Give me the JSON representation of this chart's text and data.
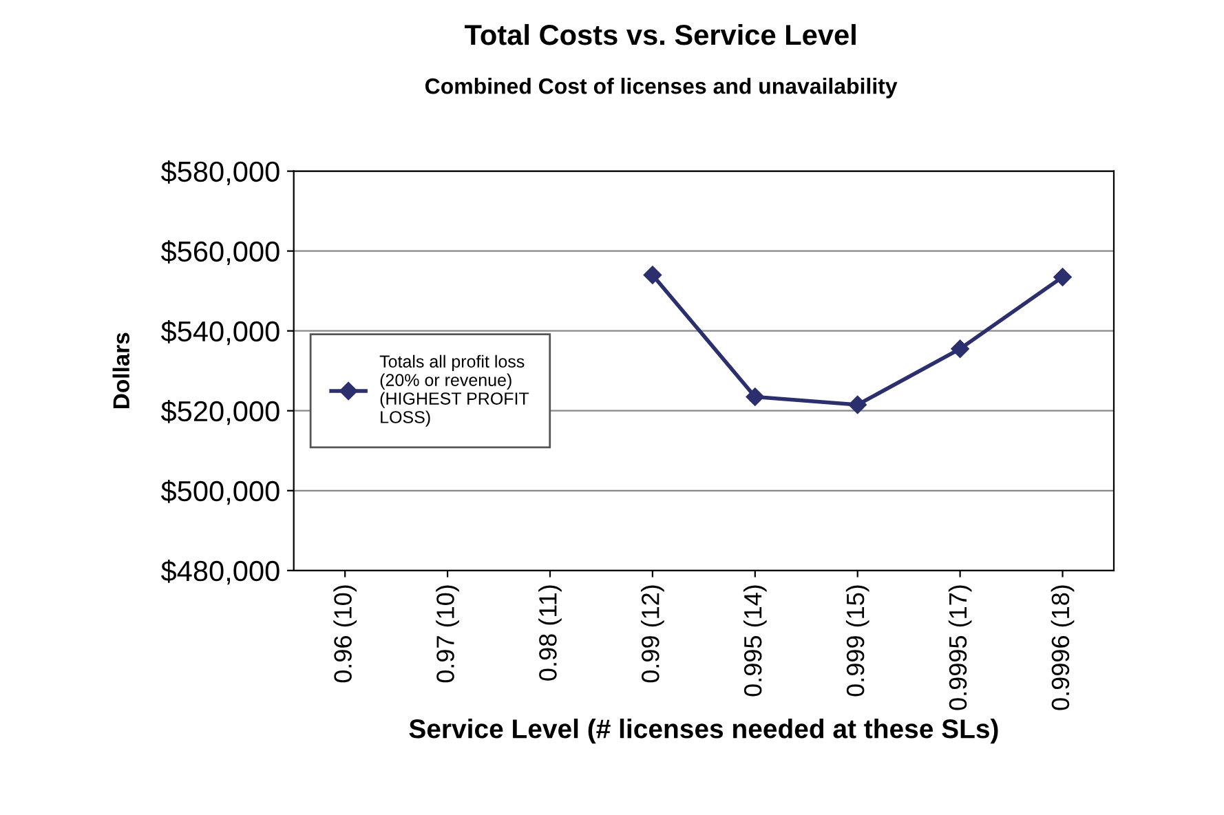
{
  "chart_data": {
    "type": "line",
    "title": "Total Costs vs. Service Level",
    "subtitle": "Combined Cost of licenses and unavailability",
    "xlabel": "Service Level (# licenses needed at these SLs)",
    "ylabel": "Dollars",
    "categories": [
      "0.96 (10)",
      "0.97 (10)",
      "0.98 (11)",
      "0.99 (12)",
      "0.995 (14)",
      "0.999 (15)",
      "0.9995 (17)",
      "0.9996 (18)"
    ],
    "series": [
      {
        "name": "Totals all profit loss (20% or revenue) (HIGHEST PROFIT LOSS)",
        "color": "#2b2f6e",
        "values": [
          null,
          null,
          null,
          554000,
          523500,
          521500,
          535500,
          553500
        ]
      }
    ],
    "ylim": [
      480000,
      580000
    ],
    "yticks": [
      {
        "value": 480000,
        "label": "$480,000"
      },
      {
        "value": 500000,
        "label": "$500,000"
      },
      {
        "value": 520000,
        "label": "$520,000"
      },
      {
        "value": 540000,
        "label": "$540,000"
      },
      {
        "value": 560000,
        "label": "$560,000"
      },
      {
        "value": 580000,
        "label": "$580,000"
      }
    ],
    "grid": "y",
    "legend": "left",
    "marker": "diamond",
    "line_style": "solid"
  }
}
